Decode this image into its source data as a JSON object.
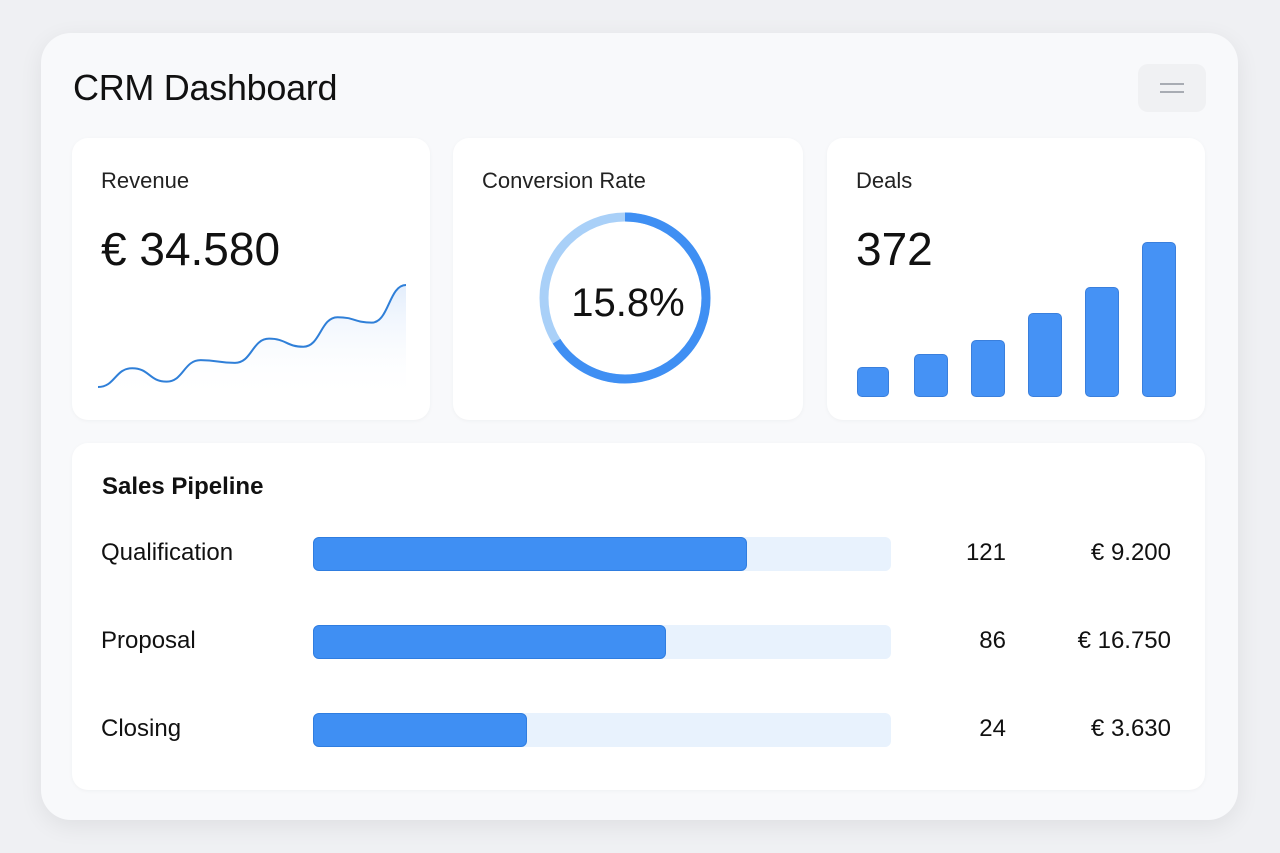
{
  "header": {
    "title": "CRM Dashboard",
    "menu_icon": "menu-icon"
  },
  "colors": {
    "accent": "#3f8ff3",
    "accent_light": "#a9d0f8",
    "track": "#e8f2fd"
  },
  "revenue": {
    "label": "Revenue",
    "value": "€ 34.580",
    "sparkline": [
      2,
      9,
      4,
      12,
      11,
      20,
      17,
      28,
      26,
      40
    ]
  },
  "conversion": {
    "label": "Conversion Rate",
    "value": "15.8%",
    "ring_fill_fraction": 0.66
  },
  "deals": {
    "label": "Deals",
    "value": "372",
    "bars": [
      30,
      43,
      57,
      84,
      110,
      155
    ]
  },
  "pipeline": {
    "title": "Sales Pipeline",
    "rows": [
      {
        "stage": "Qualification",
        "count": "121",
        "amount": "€ 9.200",
        "progress": 0.75
      },
      {
        "stage": "Proposal",
        "count": "86",
        "amount": "€ 16.750",
        "progress": 0.61
      },
      {
        "stage": "Closing",
        "count": "24",
        "amount": "€ 3.630",
        "progress": 0.37
      }
    ]
  }
}
